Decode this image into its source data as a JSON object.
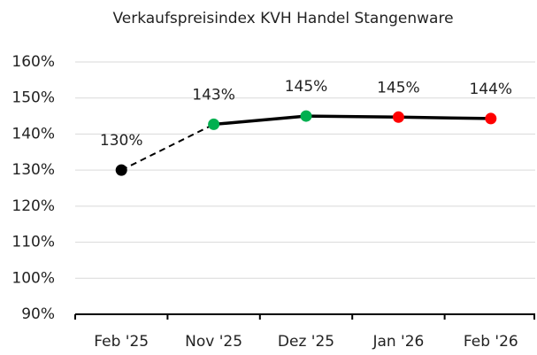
{
  "chart_data": {
    "type": "line",
    "title": "Verkaufspreisindex KVH Handel Stangenware",
    "categories": [
      "Feb '25",
      "Nov '25",
      "Dez '25",
      "Jan '26",
      "Feb '26"
    ],
    "values": [
      130,
      142.7,
      145,
      144.7,
      144.3
    ],
    "value_labels": [
      "130%",
      "143%",
      "145%",
      "145%",
      "144%"
    ],
    "color": "#000000",
    "point_colors": [
      "#000000",
      "#00b050",
      "#00b050",
      "#ff0000",
      "#ff0000"
    ],
    "segment_styles": [
      "dashed",
      "solid",
      "solid",
      "solid"
    ],
    "ylim": [
      90,
      160
    ],
    "yticks": [
      {
        "value": 90,
        "label": "90%"
      },
      {
        "value": 100,
        "label": "100%"
      },
      {
        "value": 110,
        "label": "110%"
      },
      {
        "value": 120,
        "label": "120%"
      },
      {
        "value": 130,
        "label": "130%"
      },
      {
        "value": 140,
        "label": "140%"
      },
      {
        "value": 150,
        "label": "150%"
      },
      {
        "value": 160,
        "label": "160%"
      }
    ],
    "grid": true
  }
}
